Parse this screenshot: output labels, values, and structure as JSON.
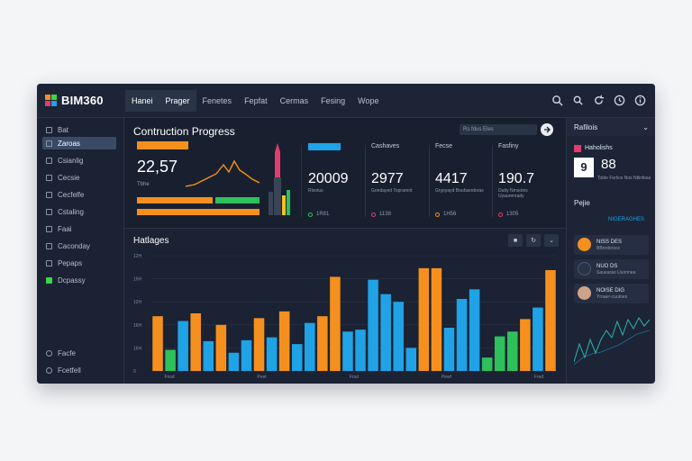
{
  "app": {
    "title": "BIM360"
  },
  "nav_tabs": [
    "Hanei",
    "Prager",
    "Fenetes",
    "Fepfat",
    "Cermas",
    "Fesing",
    "Wope"
  ],
  "top_icons": [
    "search-icon",
    "search-small-icon",
    "refresh-icon",
    "clock-icon",
    "info-icon"
  ],
  "sidebar": {
    "items": [
      {
        "label": "Bat",
        "icon": "grid-icon"
      },
      {
        "label": "Zaroas",
        "icon": "box-icon"
      },
      {
        "label": "Csianlig",
        "icon": "list-icon"
      },
      {
        "label": "Cecsie",
        "icon": "doc-icon"
      },
      {
        "label": "Cecfelfe",
        "icon": "table-icon"
      },
      {
        "label": "Cstaling",
        "icon": "layers-icon"
      },
      {
        "label": "Faai",
        "icon": "file-icon"
      },
      {
        "label": "Caconday",
        "icon": "calendar-icon"
      },
      {
        "label": "Pepaps",
        "icon": "cube-icon"
      },
      {
        "label": "Dcpassy",
        "icon": "green-square-icon"
      }
    ],
    "footer": [
      {
        "label": "Facfe",
        "icon": "settings-icon"
      },
      {
        "label": "Fcetfell",
        "icon": "user-icon"
      }
    ]
  },
  "main": {
    "title": "Contruction Progress",
    "search_placeholder": "Rs fdus Eles",
    "kpi": {
      "value": "22,57",
      "label": "Tbhe"
    },
    "stats": [
      {
        "label": "",
        "value": "20009",
        "sub": "Rlsotus",
        "foot": "1R81",
        "color": "#1fa3e6"
      },
      {
        "label": "Cashaves",
        "value": "2977",
        "sub": "Gondayed Toprarent",
        "foot": "1138",
        "color": "#e33b6c"
      },
      {
        "label": "Fecse",
        "value": "4417",
        "sub": "Grypyayd Boufasndoras",
        "foot": "1H56",
        "color": "#f5901e"
      },
      {
        "label": "Fasfiny",
        "value": "190.7",
        "sub": "Dutty Nmsotes Uyaurenrady",
        "foot": "1305",
        "color": "#e33b6c"
      }
    ]
  },
  "chart": {
    "title": "Hatlages",
    "controls": [
      "lock-icon",
      "refresh-icon",
      "chevron-down-icon"
    ]
  },
  "chart_data": {
    "type": "bar",
    "title": "Hatlages",
    "y_tick_labels": [
      "12H",
      "16H",
      "12H",
      "16H",
      "16H",
      "0"
    ],
    "x_tick_labels": [
      "Fnsd",
      "Peet",
      "Frsd",
      "Pewf",
      "Fred"
    ],
    "ylim": [
      0,
      120
    ],
    "values": [
      {
        "v": 57,
        "c": "#f5901e"
      },
      {
        "v": 22,
        "c": "#2ec05b"
      },
      {
        "v": 52,
        "c": "#1fa3e6"
      },
      {
        "v": 60,
        "c": "#f5901e"
      },
      {
        "v": 31,
        "c": "#1fa3e6"
      },
      {
        "v": 48,
        "c": "#f5901e"
      },
      {
        "v": 19,
        "c": "#1fa3e6"
      },
      {
        "v": 32,
        "c": "#1fa3e6"
      },
      {
        "v": 55,
        "c": "#f5901e"
      },
      {
        "v": 35,
        "c": "#1fa3e6"
      },
      {
        "v": 62,
        "c": "#f5901e"
      },
      {
        "v": 28,
        "c": "#1fa3e6"
      },
      {
        "v": 50,
        "c": "#1fa3e6"
      },
      {
        "v": 57,
        "c": "#f5901e"
      },
      {
        "v": 98,
        "c": "#f5901e"
      },
      {
        "v": 41,
        "c": "#1fa3e6"
      },
      {
        "v": 43,
        "c": "#1fa3e6"
      },
      {
        "v": 95,
        "c": "#1fa3e6"
      },
      {
        "v": 80,
        "c": "#1fa3e6"
      },
      {
        "v": 72,
        "c": "#1fa3e6"
      },
      {
        "v": 24,
        "c": "#1fa3e6"
      },
      {
        "v": 107,
        "c": "#f5901e"
      },
      {
        "v": 107,
        "c": "#f5901e"
      },
      {
        "v": 45,
        "c": "#1fa3e6"
      },
      {
        "v": 75,
        "c": "#1fa3e6"
      },
      {
        "v": 85,
        "c": "#1fa3e6"
      },
      {
        "v": 14,
        "c": "#2ec05b"
      },
      {
        "v": 36,
        "c": "#2ec05b"
      },
      {
        "v": 41,
        "c": "#2ec05b"
      },
      {
        "v": 54,
        "c": "#f5901e"
      },
      {
        "v": 66,
        "c": "#1fa3e6"
      },
      {
        "v": 105,
        "c": "#f5901e"
      }
    ]
  },
  "right_panel": {
    "section1": "Rafilois",
    "card_title": "Haholishs",
    "card_value": "88",
    "card_badge": "9",
    "card_sub": "Toble Forlice Nos Ntlinlbas",
    "section2": "Pejie",
    "section2_value": "NIGERAGHES",
    "rows": [
      {
        "title": "NISS DES",
        "sub": "BBnrdorscs",
        "color": "#f5901e"
      },
      {
        "title": "NUO  DS",
        "sub": "Sauearao  Uunnnea",
        "color": "#2a3447"
      },
      {
        "title": "NOISE  DIG",
        "sub": "Yroaer-cuutoes",
        "color": "#cfa38a"
      }
    ]
  }
}
